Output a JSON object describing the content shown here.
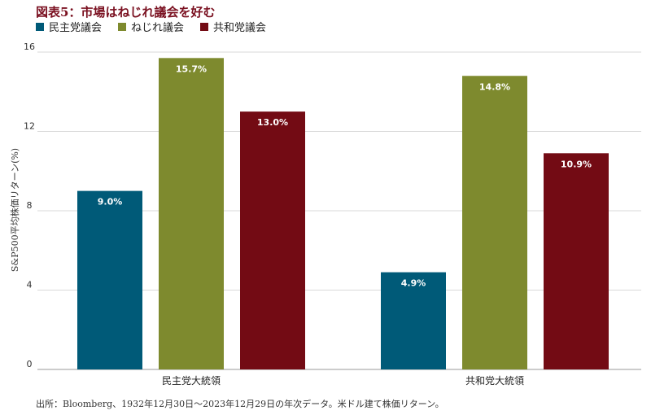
{
  "title": "図表5：市場はねじれ議会を好む",
  "source": "出所：Bloomberg、1932年12月30日～2023年12月29日の年次データ。米ドル建て株価リターン。",
  "chart_data": {
    "type": "bar",
    "title": "図表5：市場はねじれ議会を好む",
    "ylabel": "S&P500平均株価リターン(%)",
    "xlabel": "",
    "categories": [
      "民主党大統領",
      "共和党大統領"
    ],
    "series": [
      {
        "name": "民主党議会",
        "color": "#005a78",
        "values": [
          9.0,
          4.9
        ],
        "labels": [
          "9.0%",
          "4.9%"
        ]
      },
      {
        "name": "ねじれ議会",
        "color": "#7e8a2e",
        "values": [
          15.7,
          14.8
        ],
        "labels": [
          "15.7%",
          "14.8%"
        ]
      },
      {
        "name": "共和党議会",
        "color": "#730b14",
        "values": [
          13.0,
          10.9
        ],
        "labels": [
          "13.0%",
          "10.9%"
        ]
      }
    ],
    "ylim": [
      0,
      16
    ],
    "yticks": [
      0,
      4,
      8,
      12,
      16
    ],
    "grid": true,
    "legend_position": "top-left"
  }
}
